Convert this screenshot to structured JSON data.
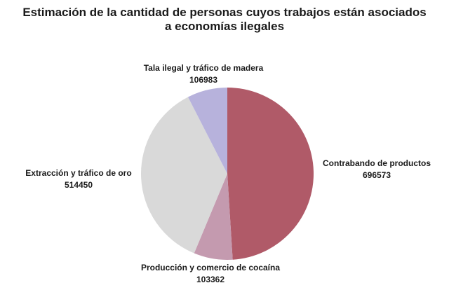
{
  "chart_data": {
    "type": "pie",
    "title_lines": [
      "Estimación de la cantidad de personas cuyos trabajos están asociados",
      "a economías ilegales"
    ],
    "slices": [
      {
        "label": "Contrabando de productos",
        "value": 696573,
        "color": "#b05a68"
      },
      {
        "label": "Producción y comercio de cocaína",
        "value": 103362,
        "color": "#c49aaf"
      },
      {
        "label": "Extracción y tráfico de oro",
        "value": 514450,
        "color": "#d9d9d9"
      },
      {
        "label": "Tala ilegal y tráfico de madera",
        "value": 106983,
        "color": "#b7b2dc"
      }
    ],
    "start_angle": "12 o'clock",
    "direction": "clockwise",
    "legend": "none"
  }
}
